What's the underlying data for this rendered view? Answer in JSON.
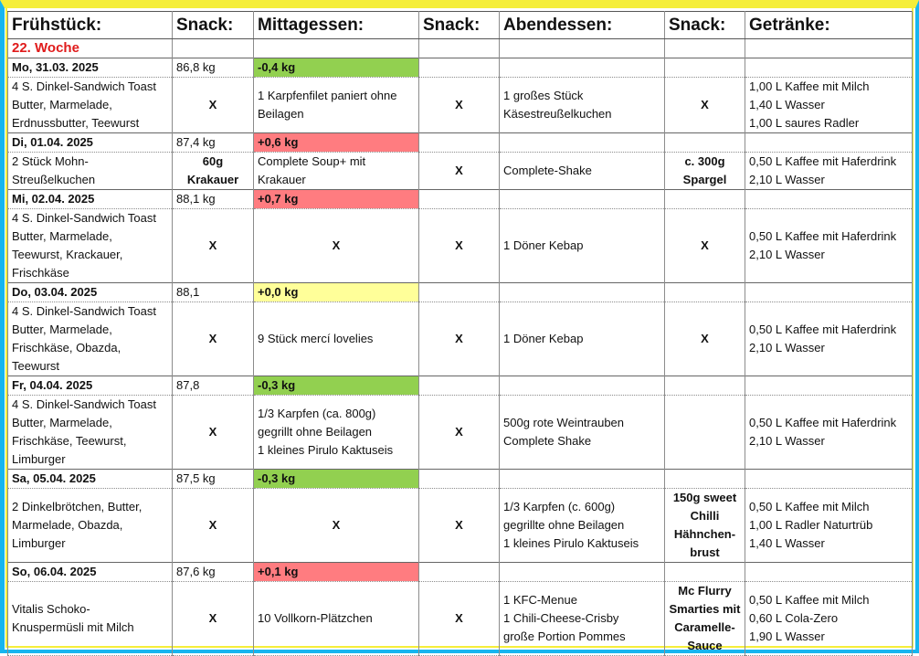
{
  "headers": [
    "Frühstück:",
    "Snack:",
    "Mittagessen:",
    "Snack:",
    "Abendessen:",
    "Snack:",
    "Getränke:"
  ],
  "week_label": "22. Woche",
  "colors": {
    "green": "#92d050",
    "red": "#ff7c80",
    "yellow": "#ffff99",
    "week_label": "#e01b1b",
    "frame_yellow": "#f5ee3a",
    "frame_blue": "#17b5ef"
  },
  "days": [
    {
      "date": "Mo, 31.03. 2025",
      "weight": "86,8 kg",
      "delta": "-0,4 kg",
      "delta_color": "green",
      "meals": {
        "breakfast": "4 S. Dinkel-Sandwich Toast\nButter, Marmelade,\nErdnussbutter, Teewurst",
        "snack1": "X",
        "lunch": "1 Karpfenfilet paniert ohne\nBeilagen",
        "snack2": "X",
        "dinner": "1 großes Stück\nKäsestreußelkuchen",
        "snack3": "X",
        "drinks": "1,00 L Kaffee mit Milch\n1,40 L Wasser\n1,00 L saures Radler"
      }
    },
    {
      "date": "Di, 01.04. 2025",
      "weight": "87,4 kg",
      "delta": "+0,6  kg",
      "delta_color": "red",
      "meals": {
        "breakfast": "2 Stück Mohn-\nStreußelkuchen",
        "snack1": "60g Krakauer",
        "lunch": "Complete Soup+ mit\nKrakauer",
        "snack2": "X",
        "dinner": "Complete-Shake",
        "snack3": "c. 300g\nSpargel",
        "drinks": "0,50 L Kaffee mit Haferdrink\n2,10 L Wasser"
      }
    },
    {
      "date": "Mi, 02.04. 2025",
      "weight": "88,1 kg",
      "delta": "+0,7  kg",
      "delta_color": "red",
      "meals": {
        "breakfast": "4 S. Dinkel-Sandwich Toast\nButter, Marmelade,\nTeewurst, Krackauer,\nFrischkäse",
        "snack1": "X",
        "lunch": "X",
        "snack2": "X",
        "dinner": "1 Döner Kebap",
        "snack3": "X",
        "drinks": "0,50 L Kaffee mit Haferdrink\n2,10 L Wasser"
      }
    },
    {
      "date": "Do, 03.04. 2025",
      "weight": "88,1",
      "delta": "+0,0  kg",
      "delta_color": "yellow",
      "meals": {
        "breakfast": "4 S. Dinkel-Sandwich Toast\nButter, Marmelade,\nFrischkäse, Obazda,\nTeewurst",
        "snack1": "X",
        "lunch": "9 Stück mercí lovelies",
        "snack2": "X",
        "dinner": "1 Döner Kebap",
        "snack3": "X",
        "drinks": "0,50 L Kaffee mit Haferdrink\n2,10 L Wasser"
      }
    },
    {
      "date": "Fr, 04.04. 2025",
      "weight": "87,8",
      "delta": "-0,3 kg",
      "delta_color": "green",
      "meals": {
        "breakfast": "4 S. Dinkel-Sandwich Toast\nButter, Marmelade,\nFrischkäse, Teewurst,\nLimburger",
        "snack1": "X",
        "lunch": "1/3 Karpfen (ca. 800g)\ngegrillt ohne Beilagen\n1 kleines Pirulo Kaktuseis",
        "snack2": "X",
        "dinner": "500g rote Weintrauben\nComplete Shake",
        "snack3": "",
        "drinks": "0,50 L Kaffee mit Haferdrink\n2,10 L Wasser"
      }
    },
    {
      "date": "Sa, 05.04. 2025",
      "weight": "87,5 kg",
      "delta": "-0,3 kg",
      "delta_color": "green",
      "meals": {
        "breakfast": "2 Dinkelbrötchen, Butter,\nMarmelade, Obazda,\nLimburger",
        "snack1": "X",
        "lunch": "X",
        "snack2": "X",
        "dinner": "1/3  Karpfen (c. 600g)\ngegrillte ohne Beilagen\n1 kleines Pirulo Kaktuseis",
        "snack3": "150g sweet\nChilli\nHähnchen-\nbrust",
        "drinks": "0,50 L Kaffee mit Milch\n1,00 L Radler Naturtrüb\n1,40 L Wasser"
      }
    },
    {
      "date": "So, 06.04. 2025",
      "weight": "87,6 kg",
      "delta": "+0,1  kg",
      "delta_color": "red",
      "meals": {
        "breakfast": "Vitalis Schoko-\nKnuspermüsli mit Milch",
        "snack1": "X",
        "lunch": "10 Vollkorn-Plätzchen",
        "snack2": "X",
        "dinner": "1 KFC-Menue\n1 Chili-Cheese-Crisby\ngroße Portion Pommes",
        "snack3": "Mc Flurry\nSmarties mit\nCaramelle-\nSauce",
        "drinks": "0,50 L Kaffee mit Milch\n0,60 L Cola-Zero\n1,90 L Wasser"
      }
    }
  ]
}
